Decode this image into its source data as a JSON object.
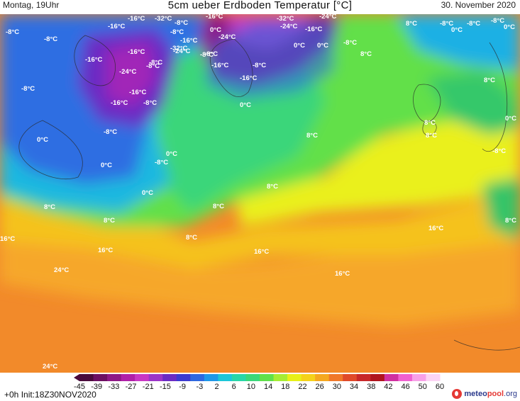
{
  "header": {
    "left": "Montag, 19Uhr",
    "title": "5cm ueber Erdboden Temperatur [°C]",
    "date": "30. November 2020"
  },
  "map_labels": [
    "-8°C",
    "-8°C",
    "-16°C",
    "-32°C",
    "-16°C",
    "-32°C",
    "-24°C",
    "-16°C",
    "-8°C",
    "0°C",
    "8°C",
    "-8°C",
    "0°C",
    "-8°C",
    "-8°C",
    "-24°C",
    "-16°C",
    "-8°C",
    "-24°C",
    "-16°C",
    "-32°C",
    "-24°C",
    "-8°C",
    "-8°C",
    "-16°C",
    "0°C",
    "0°C",
    "-8°C",
    "-16°C",
    "-24°C",
    "-16°C",
    "-8°C",
    "-8°C",
    "-16°C",
    "-16°C",
    "-8°C",
    "-16°C",
    "-8°C",
    "0°C",
    "-8°C",
    "0°C",
    "0°C",
    "8°C",
    "8°C",
    "8°C",
    "8°C",
    "-8°C",
    "0°C",
    "0°C",
    "-8°C",
    "8°C",
    "0°C",
    "8°C",
    "8°C",
    "8°C",
    "8°C",
    "16°C",
    "8°C",
    "16°C",
    "16°C",
    "24°C",
    "16°C",
    "16°C",
    "24°C",
    "0°C",
    "8°C",
    "-8°C"
  ],
  "colorbar": {
    "ticks": [
      "-45",
      "-39",
      "-33",
      "-27",
      "-21",
      "-15",
      "-9",
      "-3",
      "2",
      "6",
      "10",
      "14",
      "18",
      "22",
      "26",
      "30",
      "34",
      "38",
      "42",
      "46",
      "50",
      "60"
    ],
    "colors": [
      "#4a0a3c",
      "#6d0f62",
      "#8e1786",
      "#b020a8",
      "#c837c4",
      "#9b35c8",
      "#6a2bc4",
      "#3b3ad0",
      "#2e68e0",
      "#1f98e8",
      "#1cc6d8",
      "#28d6a8",
      "#3ad77a",
      "#60e04a",
      "#a6ec34",
      "#e8f018",
      "#f5d21a",
      "#f5a820",
      "#f0782a",
      "#e04a2a",
      "#c8282a",
      "#b0141e",
      "#d030a0",
      "#f060d0",
      "#f8a0e8",
      "#fcd4f4"
    ]
  },
  "footer": {
    "left": "+0h Init:18Z30NOV2020",
    "logo": [
      "meteo",
      "pool",
      ".org"
    ]
  }
}
